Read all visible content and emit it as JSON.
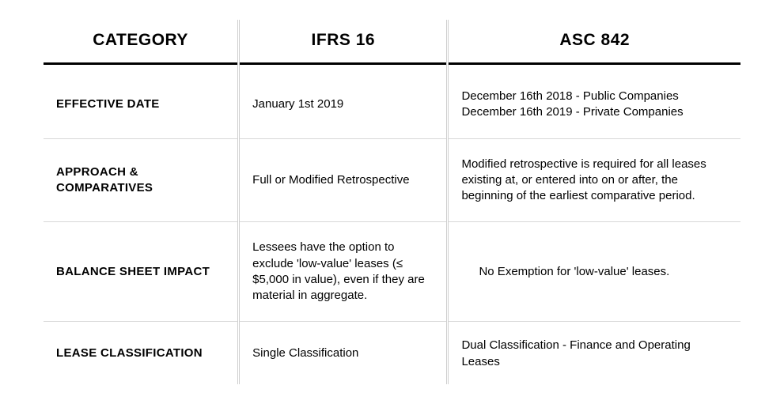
{
  "table": {
    "headers": [
      "CATEGORY",
      "IFRS 16",
      "ASC 842"
    ],
    "rows": [
      {
        "category": "EFFECTIVE DATE",
        "ifrs": "January 1st 2019",
        "asc": "December 16th 2018 - Public Companies\nDecember 16th 2019 - Private Companies"
      },
      {
        "category": "APPROACH & COMPARATIVES",
        "ifrs": "Full or Modified Retrospective",
        "asc": "Modified retrospective is required for all leases existing at, or entered into on or after, the beginning of the earliest comparative period."
      },
      {
        "category": "BALANCE SHEET IMPACT",
        "ifrs": "Lessees have the option to exclude 'low-value' leases (≤ $5,000 in value), even if they are material in aggregate.",
        "asc": "No Exemption for 'low-value' leases.",
        "asc_indent": true
      },
      {
        "category": "LEASE CLASSIFICATION",
        "ifrs": "Single Classification",
        "asc": "Dual Classification - Finance and Operating Leases"
      }
    ],
    "styling": {
      "background_color": "#ffffff",
      "header_font_size_pt": 16,
      "header_font_weight": 700,
      "header_border_bottom": "3px solid #000000",
      "body_font_size_pt": 11,
      "row_border_color": "#d8d8d8",
      "column_separator": "3px double #cfcfcf",
      "category_font_weight": 700,
      "column_widths_pct": [
        28,
        30,
        42
      ]
    }
  }
}
